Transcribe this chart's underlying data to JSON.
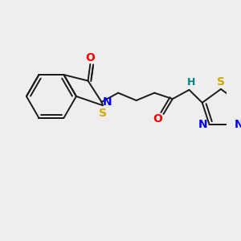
{
  "bg_color": "#eeeeee",
  "bond_color": "#1a1a1a",
  "colors": {
    "O": "#ff0000",
    "N": "#0000ff",
    "S": "#ccaa00",
    "H": "#008080",
    "C": "#1a1a1a"
  }
}
